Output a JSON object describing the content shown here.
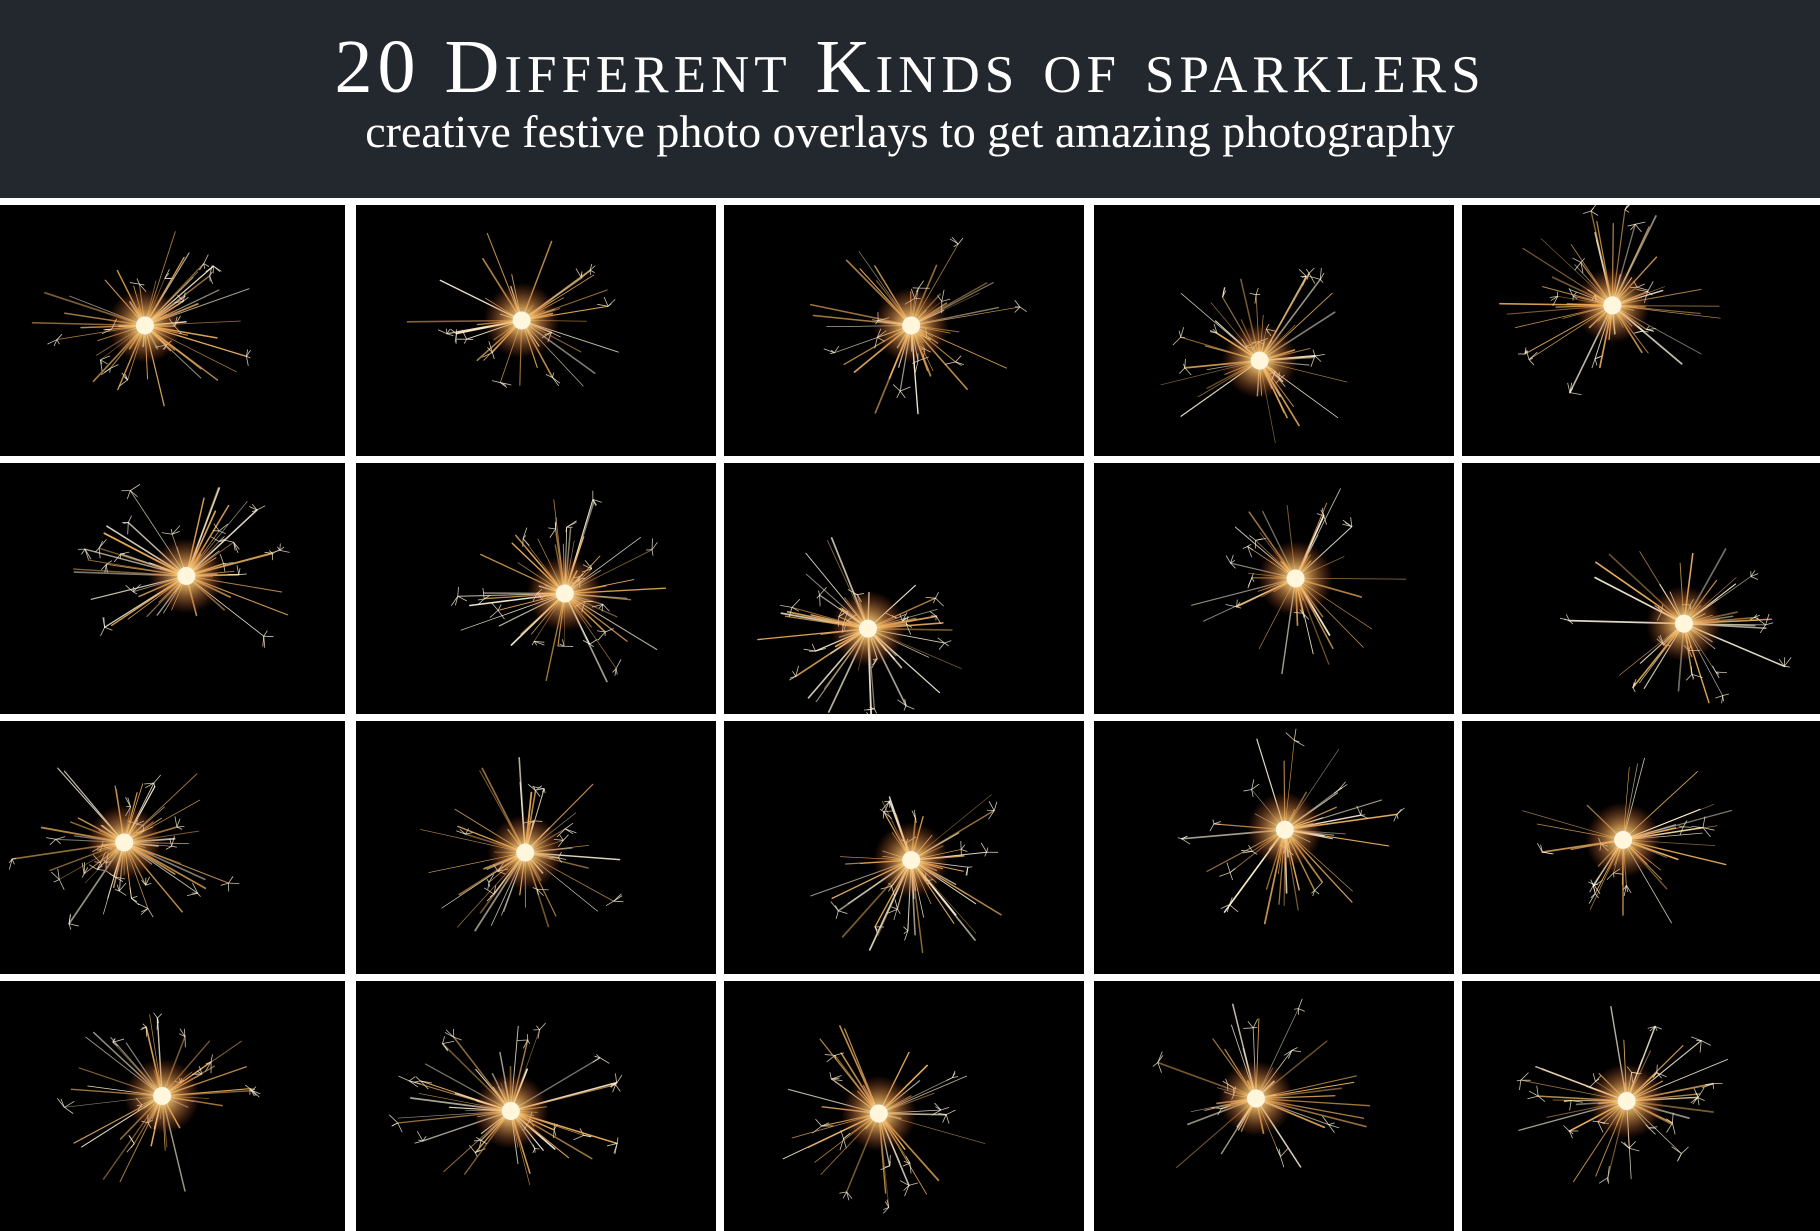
{
  "header": {
    "title": "20 Different Kinds of sparklers",
    "subtitle": "creative festive photo overlays to get amazing photography"
  },
  "colors": {
    "header_bg": "#23272e",
    "header_text": "#ffffff",
    "tile_bg": "#000000",
    "separator": "#ffffff",
    "spark_core": "#fff6dc",
    "spark_glow": "#f2b560",
    "spark_ember": "#c8542a"
  },
  "tiles": [
    {
      "name": "sparkler-1"
    },
    {
      "name": "sparkler-2"
    },
    {
      "name": "sparkler-3"
    },
    {
      "name": "sparkler-4"
    },
    {
      "name": "sparkler-5"
    },
    {
      "name": "sparkler-6"
    },
    {
      "name": "sparkler-7"
    },
    {
      "name": "sparkler-8"
    },
    {
      "name": "sparkler-9"
    },
    {
      "name": "sparkler-10"
    },
    {
      "name": "sparkler-11"
    },
    {
      "name": "sparkler-12"
    },
    {
      "name": "sparkler-13"
    },
    {
      "name": "sparkler-14"
    },
    {
      "name": "sparkler-15"
    },
    {
      "name": "sparkler-16"
    },
    {
      "name": "sparkler-17"
    },
    {
      "name": "sparkler-18"
    },
    {
      "name": "sparkler-19"
    },
    {
      "name": "sparkler-20"
    }
  ]
}
